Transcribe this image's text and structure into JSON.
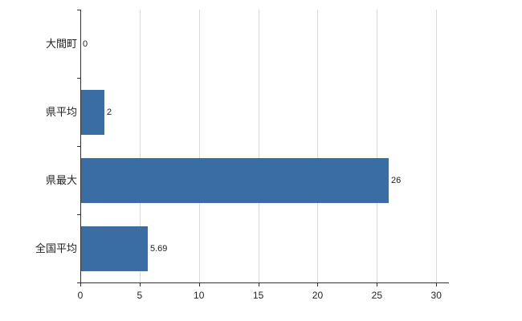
{
  "chart_data": {
    "type": "bar",
    "orientation": "horizontal",
    "title": "",
    "xlabel": "",
    "ylabel": "",
    "categories": [
      "大間町",
      "県平均",
      "県最大",
      "全国平均"
    ],
    "values": [
      0,
      2,
      26,
      5.69
    ],
    "value_labels": [
      "0",
      "2",
      "26",
      "5.69"
    ],
    "x_ticks": [
      0,
      5,
      10,
      15,
      20,
      25,
      30
    ],
    "x_tick_labels": [
      "0",
      "5",
      "10",
      "15",
      "20",
      "25",
      "30"
    ],
    "xlim": [
      0,
      31
    ],
    "grid": true,
    "legend": false,
    "bar_color": "#3a6da4",
    "grid_color": "#d9d9d9",
    "axis_color": "#333333"
  }
}
